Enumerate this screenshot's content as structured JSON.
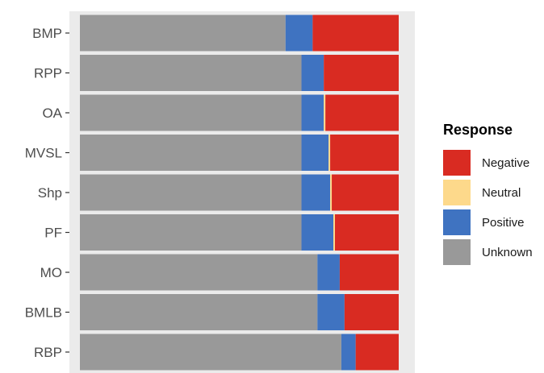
{
  "chart_data": {
    "type": "bar",
    "orientation": "horizontal",
    "stacked": "percent",
    "title": "",
    "xlabel": "",
    "ylabel": "",
    "xlim": [
      0,
      1
    ],
    "grid": false,
    "legend_position": "right",
    "categories": [
      "BMP",
      "RPP",
      "OA",
      "MVSL",
      "Shp",
      "PF",
      "MO",
      "BMLB",
      "RBP"
    ],
    "series": [
      {
        "name": "Unknown",
        "color": "#999999",
        "values": [
          0.645,
          0.695,
          0.695,
          0.695,
          0.695,
          0.695,
          0.745,
          0.745,
          0.82
        ]
      },
      {
        "name": "Positive",
        "color": "#3f73c1",
        "values": [
          0.085,
          0.07,
          0.07,
          0.085,
          0.09,
          0.1,
          0.07,
          0.085,
          0.045
        ]
      },
      {
        "name": "Neutral",
        "color": "#fdd98b",
        "values": [
          0.0,
          0.0,
          0.005,
          0.005,
          0.005,
          0.005,
          0.0,
          0.0,
          0.0
        ]
      },
      {
        "name": "Negative",
        "color": "#d92b22",
        "values": [
          0.27,
          0.235,
          0.23,
          0.215,
          0.21,
          0.2,
          0.185,
          0.17,
          0.135
        ]
      }
    ],
    "legend": {
      "title": "Response",
      "order": [
        "Negative",
        "Neutral",
        "Positive",
        "Unknown"
      ]
    }
  }
}
